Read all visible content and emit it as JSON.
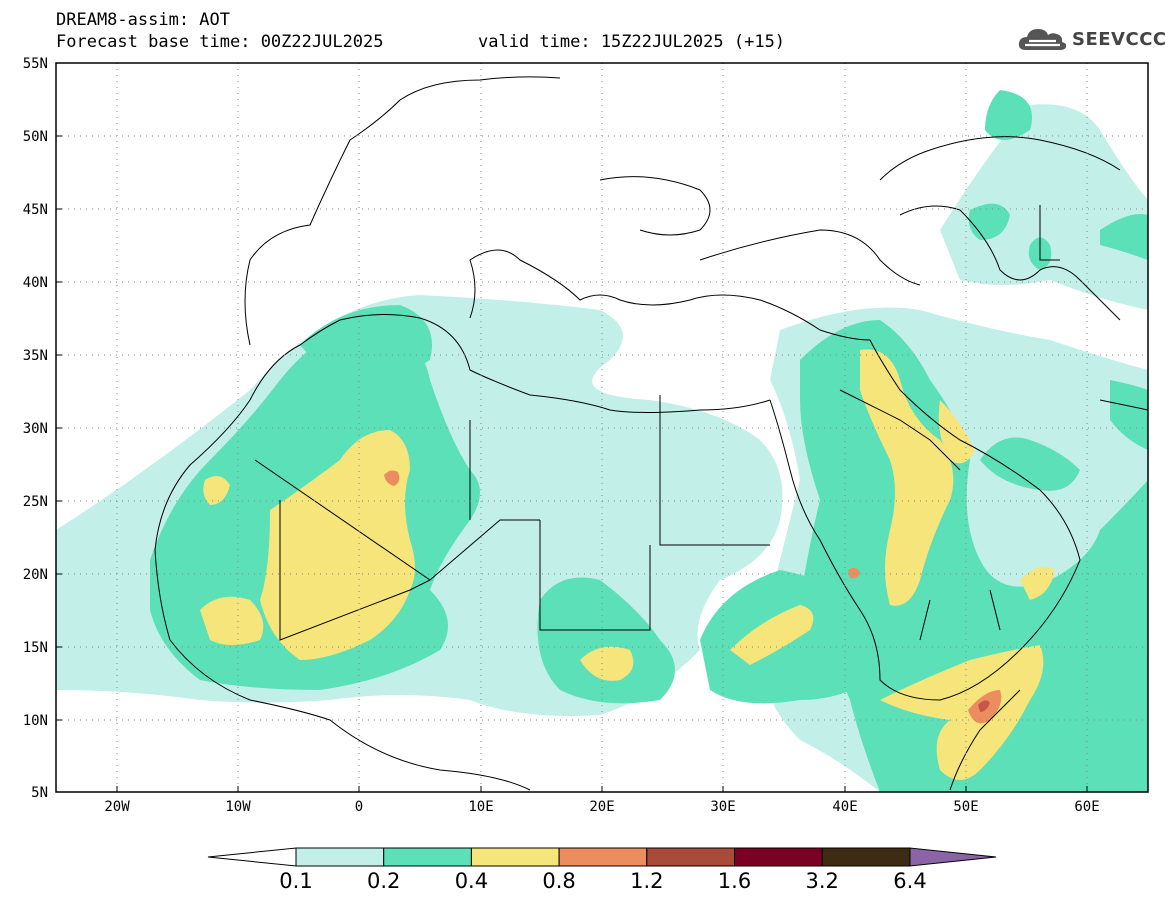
{
  "header": {
    "product": "DREAM8-assim: AOT",
    "base_time": "Forecast base time: 00Z22JUL2025",
    "valid_time": "valid time: 15Z22JUL2025 (+15)"
  },
  "logo": {
    "text": "SEEVCCC",
    "icon": "cloud-icon"
  },
  "map": {
    "lat_range": [
      5,
      55
    ],
    "lon_range": [
      -25,
      65
    ],
    "lat_ticks": [
      "5N",
      "10N",
      "15N",
      "20N",
      "25N",
      "30N",
      "35N",
      "40N",
      "45N",
      "50N",
      "55N"
    ],
    "lon_ticks": [
      "20W",
      "10W",
      "0",
      "10E",
      "20E",
      "30E",
      "40E",
      "50E",
      "60E"
    ],
    "grid": "dotted",
    "variable": "Aerosol Optical Thickness"
  },
  "colorbar": {
    "levels": [
      "0.1",
      "0.2",
      "0.4",
      "0.8",
      "1.2",
      "1.6",
      "3.2",
      "6.4"
    ],
    "colors": [
      "#c2f0e8",
      "#5ce0b8",
      "#f5e57a",
      "#eb8d5e",
      "#a94a3a",
      "#7a0025",
      "#3f2a14",
      "#8b64a8"
    ],
    "under_color": "#ffffff",
    "extend": "both"
  },
  "colors": {
    "lightest": "#c2f0e8",
    "light": "#5ce0b8",
    "medium": "#f5e57a",
    "high": "#eb8d5e",
    "very_high": "#c5564a"
  }
}
